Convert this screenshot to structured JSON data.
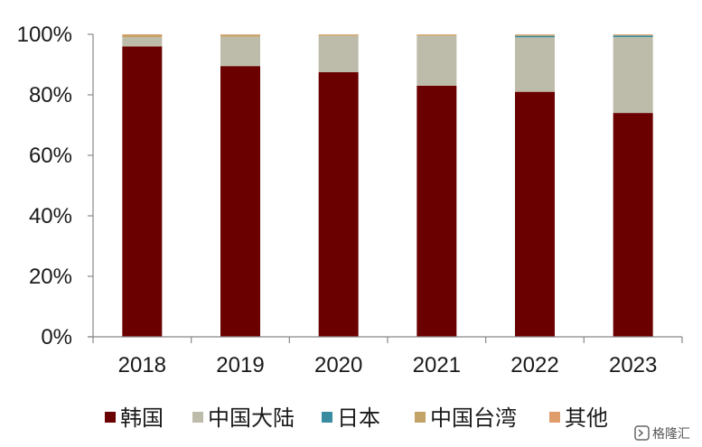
{
  "chart_data": {
    "type": "bar",
    "stacked": true,
    "categories": [
      "2018",
      "2019",
      "2020",
      "2021",
      "2022",
      "2023"
    ],
    "ylim": [
      0,
      100
    ],
    "yticks": [
      "0%",
      "20%",
      "40%",
      "60%",
      "80%",
      "100%"
    ],
    "yunit": "%",
    "grid": false,
    "legend_position": "bottom",
    "series": [
      {
        "name": "韩国",
        "color": "#6b0000",
        "values": [
          96.0,
          89.5,
          87.5,
          83.0,
          81.0,
          74.0
        ]
      },
      {
        "name": "中国大陆",
        "color": "#bdbcaa",
        "values": [
          3.0,
          9.7,
          12.0,
          16.5,
          18.0,
          25.1
        ]
      },
      {
        "name": "日本",
        "color": "#3a8ca0",
        "values": [
          0.0,
          0.0,
          0.0,
          0.0,
          0.5,
          0.5
        ]
      },
      {
        "name": "中国台湾",
        "color": "#c2a468",
        "values": [
          0.7,
          0.6,
          0.3,
          0.3,
          0.3,
          0.2
        ]
      },
      {
        "name": "其他",
        "color": "#e09d6c",
        "values": [
          0.3,
          0.2,
          0.2,
          0.2,
          0.2,
          0.2
        ]
      }
    ]
  },
  "watermark": {
    "text": "格隆汇",
    "icon": "gelonghui-logo-icon"
  }
}
